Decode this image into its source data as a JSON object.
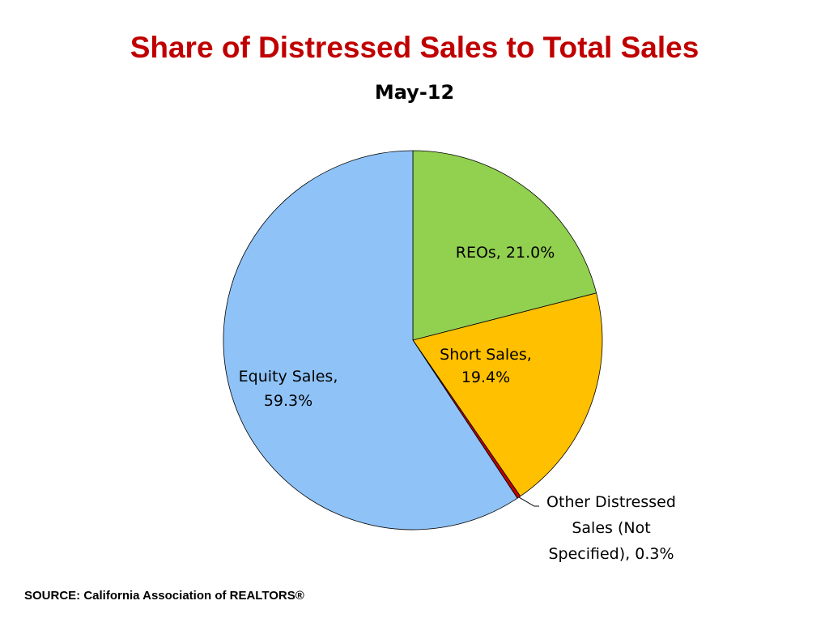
{
  "chart_data": {
    "type": "pie",
    "title": "Share of Distressed Sales to Total Sales",
    "subtitle": "May-12",
    "slices": [
      {
        "name": "REOs",
        "value": 21.0,
        "color": "#92d050",
        "label_lines": [
          "REOs, 21.0%"
        ]
      },
      {
        "name": "Short Sales",
        "value": 19.4,
        "color": "#ffc000",
        "label_lines": [
          "Short Sales,",
          "19.4%"
        ]
      },
      {
        "name": "Other Distressed Sales (Not Specified)",
        "value": 0.3,
        "color": "#c00000",
        "label_lines": [
          "Other Distressed",
          "Sales (Not",
          "Specified), 0.3%"
        ]
      },
      {
        "name": "Equity Sales",
        "value": 59.3,
        "color": "#8fc3f7",
        "label_lines": [
          "Equity Sales,",
          "59.3%"
        ]
      }
    ],
    "start_angle": "12 o'clock",
    "direction": "clockwise",
    "legend": "none"
  },
  "source": "SOURCE: California Association of REALTORS®"
}
